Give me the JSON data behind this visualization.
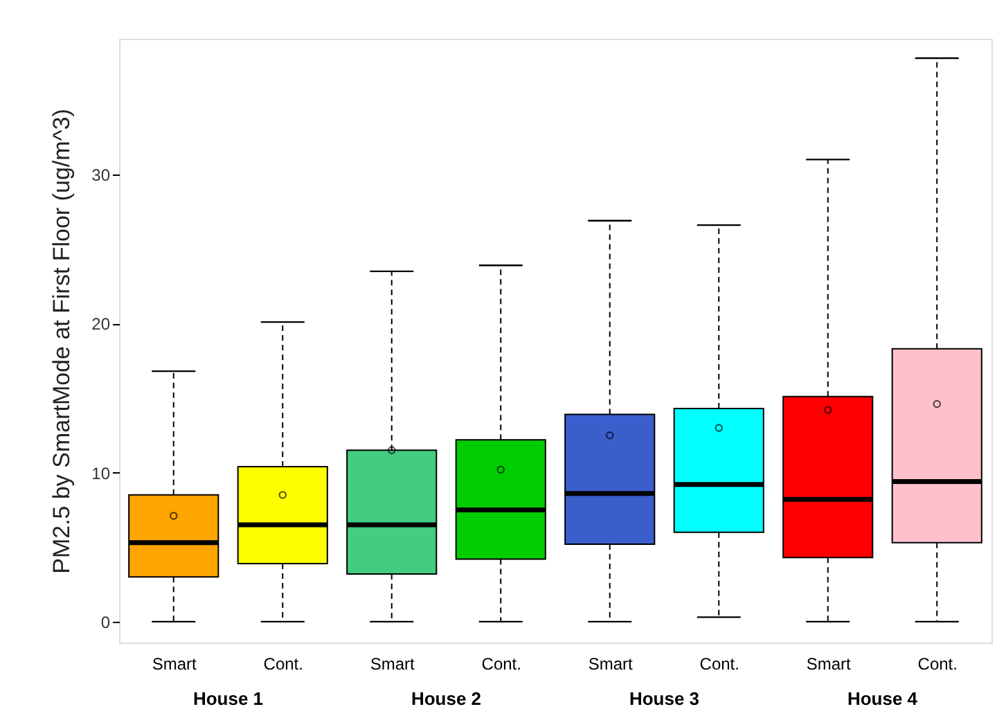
{
  "chart_data": {
    "type": "box",
    "ylabel": "PM2.5 by SmartMode at First Floor (ug/m^3)",
    "categories": [
      "Smart",
      "Cont.",
      "Smart",
      "Cont.",
      "Smart",
      "Cont.",
      "Smart",
      "Cont."
    ],
    "annotations": [
      "House 1",
      "House 2",
      "House 3",
      "House 4"
    ],
    "colors": [
      "#ffa500",
      "#ffff00",
      "#43cd80",
      "#00cd00",
      "#3a5fcd",
      "#00ffff",
      "#ff0000",
      "#ffc0cb"
    ],
    "boxes": [
      {
        "low": 0,
        "q1": 3.0,
        "median": 5.3,
        "q3": 8.5,
        "high": 16.8,
        "mean": 7.1
      },
      {
        "low": 0,
        "q1": 3.9,
        "median": 6.5,
        "q3": 10.4,
        "high": 20.1,
        "mean": 8.5
      },
      {
        "low": 0,
        "q1": 3.2,
        "median": 6.5,
        "q3": 11.5,
        "high": 23.5,
        "mean": 11.5
      },
      {
        "low": 0,
        "q1": 4.2,
        "median": 7.5,
        "q3": 12.2,
        "high": 23.9,
        "mean": 10.2
      },
      {
        "low": 0,
        "q1": 5.2,
        "median": 8.6,
        "q3": 13.9,
        "high": 26.9,
        "mean": 12.5
      },
      {
        "low": 0.3,
        "q1": 6.0,
        "median": 9.2,
        "q3": 14.3,
        "high": 26.6,
        "mean": 13.0
      },
      {
        "low": 0,
        "q1": 4.3,
        "median": 8.2,
        "q3": 15.1,
        "high": 31.0,
        "mean": 14.2
      },
      {
        "low": 0,
        "q1": 5.3,
        "median": 9.4,
        "q3": 18.3,
        "high": 37.8,
        "mean": 14.6
      }
    ],
    "ylim": [
      -1.4,
      39.1
    ],
    "yticks": [
      0,
      10,
      20,
      30
    ],
    "grid": false,
    "legend": false
  }
}
